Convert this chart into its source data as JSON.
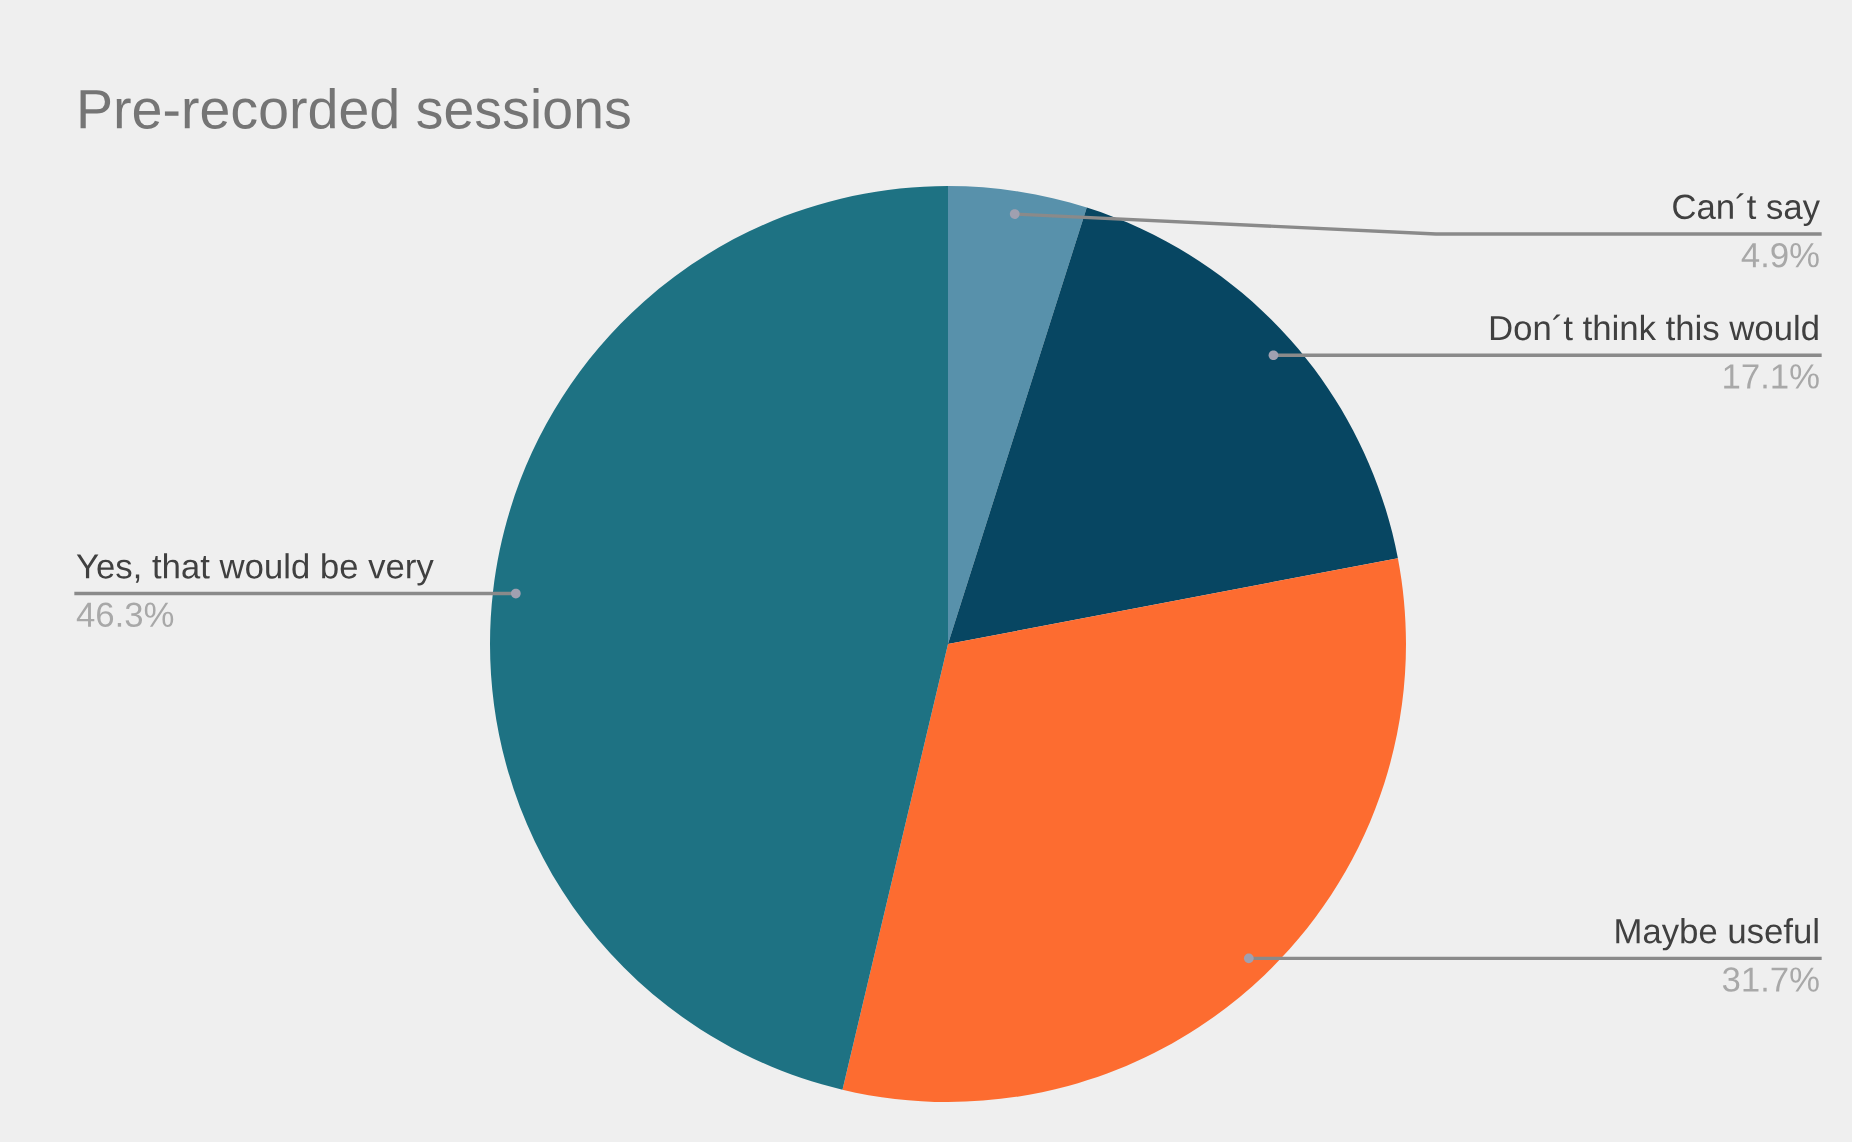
{
  "chart_data": {
    "type": "pie",
    "title": "Pre-recorded sessions",
    "categories": [
      "Can´t say",
      "Don´t think this would",
      "Maybe useful",
      "Yes, that would be very"
    ],
    "values": [
      4.9,
      17.1,
      31.7,
      46.3
    ],
    "colors": [
      "#5891ab",
      "#074662",
      "#fd6c30",
      "#1e7283"
    ],
    "value_labels": [
      "4.9%",
      "17.1%",
      "31.7%",
      "46.3%"
    ]
  }
}
